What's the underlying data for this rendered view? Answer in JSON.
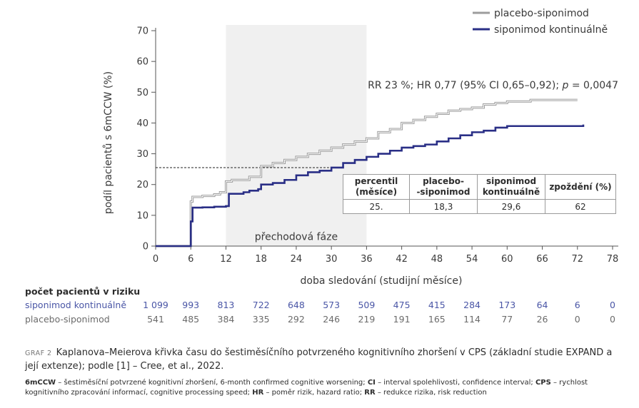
{
  "chart_data": {
    "type": "step-line (Kaplan–Meier)",
    "ylabel": "podíl pacientů s 6mCCW (%)",
    "xlabel": "doba sledování (studijní měsíce)",
    "xlim": [
      0,
      78
    ],
    "ylim": [
      0,
      70
    ],
    "xticks": [
      0,
      6,
      12,
      18,
      24,
      30,
      36,
      42,
      48,
      54,
      60,
      66,
      72,
      78
    ],
    "yticks": [
      0,
      10,
      20,
      30,
      40,
      50,
      60,
      70
    ],
    "transition_phase": {
      "x_range": [
        12,
        36
      ],
      "label": "přechodová fáze"
    },
    "annotation": {
      "prefix": "RR 23 %; HR 0,77 (95% CI 0,65–0,92); ",
      "p_symbol": "p",
      "suffix": " = 0,0047"
    },
    "reference_line_y": 25.5,
    "legend_position": "top-right",
    "series": [
      {
        "name": "placebo-siponimod",
        "color": "#9c9c9c",
        "points": [
          [
            0,
            0
          ],
          [
            5.5,
            0
          ],
          [
            6,
            14.5
          ],
          [
            6.3,
            16
          ],
          [
            8,
            16.3
          ],
          [
            10,
            16.8
          ],
          [
            11,
            17.5
          ],
          [
            12,
            21
          ],
          [
            13,
            21.5
          ],
          [
            16,
            22.5
          ],
          [
            18,
            26
          ],
          [
            20,
            27
          ],
          [
            22,
            28
          ],
          [
            24,
            29
          ],
          [
            26,
            30
          ],
          [
            28,
            31
          ],
          [
            30,
            32
          ],
          [
            32,
            33
          ],
          [
            34,
            34
          ],
          [
            36,
            35
          ],
          [
            38,
            37
          ],
          [
            40,
            38
          ],
          [
            42,
            40
          ],
          [
            44,
            41
          ],
          [
            46,
            42
          ],
          [
            48,
            43
          ],
          [
            50,
            44
          ],
          [
            52,
            44.5
          ],
          [
            54,
            45
          ],
          [
            56,
            46
          ],
          [
            58,
            46.5
          ],
          [
            60,
            47
          ],
          [
            62,
            47
          ],
          [
            64,
            47.5
          ],
          [
            66,
            47.5
          ],
          [
            72,
            47.5
          ]
        ]
      },
      {
        "name": "siponimod kontinuálně",
        "color": "#2a2f86",
        "points": [
          [
            0,
            0
          ],
          [
            5.5,
            0
          ],
          [
            6,
            8
          ],
          [
            6.3,
            12.5
          ],
          [
            8,
            12.6
          ],
          [
            10,
            12.8
          ],
          [
            12,
            13
          ],
          [
            12.5,
            17
          ],
          [
            14,
            17
          ],
          [
            15,
            17.5
          ],
          [
            16,
            18
          ],
          [
            17.5,
            18.5
          ],
          [
            18,
            20
          ],
          [
            20,
            20.5
          ],
          [
            22,
            21.5
          ],
          [
            24,
            23
          ],
          [
            26,
            24
          ],
          [
            28,
            24.5
          ],
          [
            30,
            25.5
          ],
          [
            32,
            27
          ],
          [
            34,
            28
          ],
          [
            36,
            29
          ],
          [
            38,
            30
          ],
          [
            40,
            31
          ],
          [
            42,
            32
          ],
          [
            44,
            32.5
          ],
          [
            46,
            33
          ],
          [
            48,
            34
          ],
          [
            50,
            35
          ],
          [
            52,
            36
          ],
          [
            54,
            37
          ],
          [
            56,
            37.5
          ],
          [
            58,
            38.5
          ],
          [
            60,
            39
          ],
          [
            66,
            39
          ],
          [
            73,
            39.5
          ]
        ]
      }
    ],
    "percentile_table": {
      "headers": [
        "percentil (měsíce)",
        "placebo-siponimod",
        "siponimod kontinuálně",
        "zpoždění (%)"
      ],
      "header_lines": [
        [
          "percentil",
          "(měsíce)"
        ],
        [
          "placebo-",
          "-siponimod"
        ],
        [
          "siponimod",
          "kontinuálně"
        ],
        [
          "zpoždění (%)",
          ""
        ]
      ],
      "row": [
        "25.",
        "18,3",
        "29,6",
        "62"
      ]
    }
  },
  "risk_table": {
    "title": "počet pacientů v riziku",
    "rows": [
      {
        "label": "siponimod kontinuálně",
        "values": [
          "1 099",
          "993",
          "813",
          "722",
          "648",
          "573",
          "509",
          "475",
          "415",
          "284",
          "173",
          "64",
          "6",
          "0"
        ]
      },
      {
        "label": "placebo-siponimod",
        "values": [
          "541",
          "485",
          "384",
          "335",
          "292",
          "246",
          "219",
          "191",
          "165",
          "114",
          "77",
          "26",
          "0",
          "0"
        ]
      }
    ]
  },
  "caption": {
    "tag": "GRAF 2",
    "text": "Kaplanova–Meierova křivka času do šestiměsíčního potvrzeného kognitivního zhoršení v CPS (základní studie EXPAND a její extenze); podle [1] – Cree, et al., 2022."
  },
  "footnote": [
    {
      "abbr": "6mCCW",
      "text": " – šestiměsíční potvrzené kognitivní zhoršení, 6-month confirmed cognitive worsening; "
    },
    {
      "abbr": "CI",
      "text": " – interval spolehlivosti, confidence interval; "
    },
    {
      "abbr": "CPS",
      "text": " – rychlost kognitivního zpracování informací, cognitive processing speed; "
    },
    {
      "abbr": "HR",
      "text": " – poměr rizik, hazard ratio; "
    },
    {
      "abbr": "RR",
      "text": " – redukce rizika, risk reduction"
    }
  ]
}
